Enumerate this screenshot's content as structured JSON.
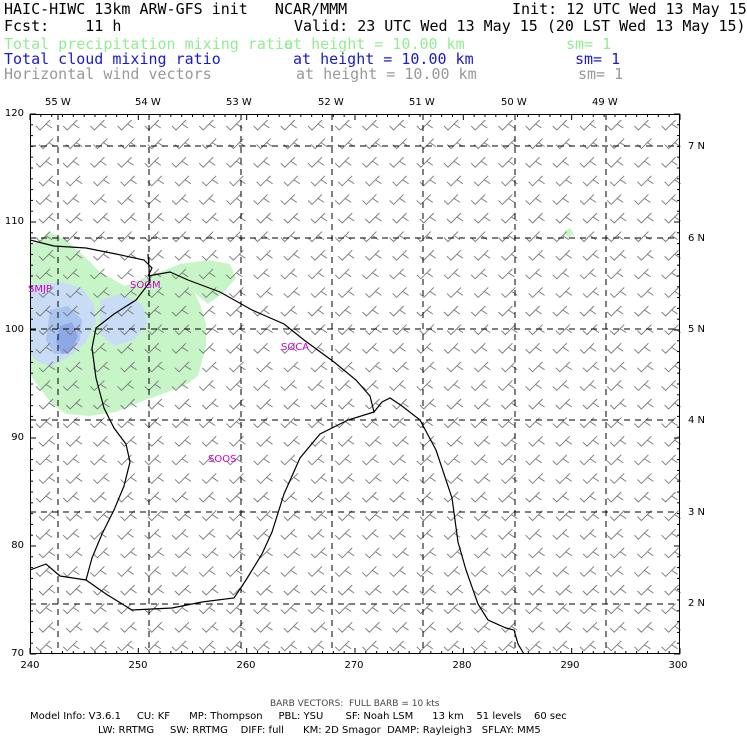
{
  "header": {
    "line1_left": "HAIC-HIWC 13km ARW-GFS init   NCAR/MMM",
    "line1_right": "Init: 12 UTC Wed 13 May 15",
    "line2_left": "Fcst:    11 h",
    "line2_right": "Valid: 23 UTC Wed 13 May 15 (20 LST Wed 13 May 15)",
    "fields": [
      {
        "name": "Total precipitation mixing ratio",
        "height": "at height = 10.00 km",
        "sm": "sm= 1",
        "color": "#90ee90"
      },
      {
        "name": "Total cloud mixing ratio",
        "height": "at height = 10.00 km",
        "sm": "sm= 1",
        "color": "#1a1acd"
      },
      {
        "name": "Horizontal wind vectors",
        "height": "at height = 10.00 km",
        "sm": "sm= 1",
        "color": "#999999"
      }
    ]
  },
  "map": {
    "lon_labels": [
      "55 W",
      "54 W",
      "53 W",
      "52 W",
      "51 W",
      "50 W",
      "49 W"
    ],
    "lat_labels": [
      "7 N",
      "6 N",
      "5 N",
      "4 N",
      "3 N",
      "2 N"
    ],
    "y_ticks": [
      "120",
      "110",
      "100",
      "90",
      "80",
      "70"
    ],
    "x_ticks": [
      "240",
      "250",
      "260",
      "270",
      "280",
      "290",
      "300"
    ],
    "stations": [
      {
        "id": "SMJP"
      },
      {
        "id": "SOGM"
      },
      {
        "id": "SOCA"
      },
      {
        "id": "SOOS"
      }
    ],
    "colors": {
      "precip": "#c8f5c8",
      "cloud_light": "#c8dcf5",
      "cloud_mid": "#aac4f0",
      "cloud_dark": "#8ea8e6",
      "barb": "#777777",
      "coast": "#000000"
    }
  },
  "footer": {
    "barb_note": "BARB VECTORS:  FULL BARB = 10 kts",
    "line1": "Model Info: V3.6.1     CU: KF      MP: Thompson     PBL: YSU       SF: Noah LSM      13 km    51 levels    60 sec",
    "line2": "LW: RRTMG     SW: RRTMG    DIFF: full      KM: 2D Smagor  DAMP: Rayleigh3   SFLAY: MM5"
  }
}
